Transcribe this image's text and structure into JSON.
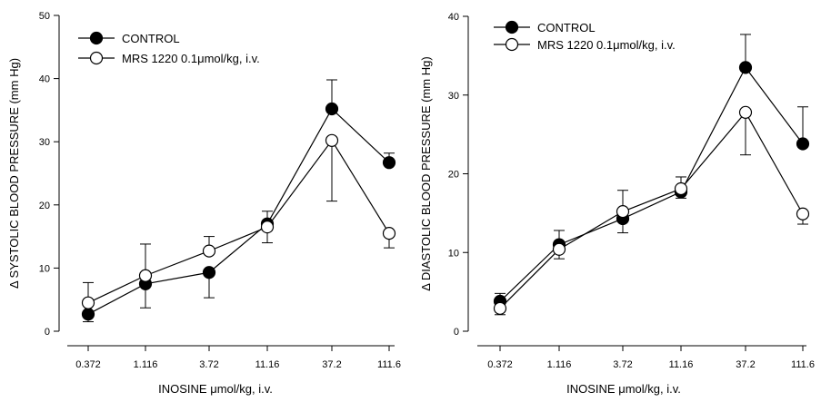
{
  "chart_data": [
    {
      "type": "line",
      "ylabel": "Δ SYSTOLIC BLOOD PRESSURE (mm Hg)",
      "xlabel": "INOSINE μmol/kg, i.v.",
      "categories": [
        "0.372",
        "1.116",
        "3.72",
        "11.16",
        "37.2",
        "111.6"
      ],
      "ylim": [
        0,
        50
      ],
      "yticks": [
        "0",
        "10",
        "20",
        "30",
        "40",
        "50"
      ],
      "grid": false,
      "legend_position": "top-left",
      "series": [
        {
          "name": "CONTROL",
          "marker": "filled-circle",
          "color": "#000000",
          "values": [
            2.7,
            7.5,
            9.3,
            17.0,
            35.2,
            26.7
          ],
          "errors": [
            1.2,
            3.8,
            4.0,
            2.0,
            4.6,
            1.5
          ]
        },
        {
          "name": "MRS 1220 0.1μmol/kg, i.v.",
          "marker": "open-circle",
          "color": "#000000",
          "values": [
            4.5,
            8.8,
            12.7,
            16.5,
            30.2,
            15.5
          ],
          "errors": [
            3.2,
            5.0,
            2.3,
            2.5,
            9.6,
            2.3
          ]
        }
      ]
    },
    {
      "type": "line",
      "ylabel": "Δ DIASTOLIC BLOOD PRESSURE (mm Hg)",
      "xlabel": "INOSINE μmol/kg, i.v.",
      "categories": [
        "0.372",
        "1.116",
        "3.72",
        "11.16",
        "37.2",
        "111.6"
      ],
      "ylim": [
        0,
        40
      ],
      "yticks": [
        "0",
        "10",
        "20",
        "30",
        "40"
      ],
      "grid": false,
      "legend_position": "top-left",
      "series": [
        {
          "name": "CONTROL",
          "marker": "filled-circle",
          "color": "#000000",
          "values": [
            3.8,
            11.0,
            14.3,
            17.7,
            33.5,
            23.8
          ],
          "errors": [
            1.0,
            1.8,
            1.8,
            0.8,
            4.2,
            4.7
          ]
        },
        {
          "name": "MRS 1220 0.1μmol/kg, i.v.",
          "marker": "open-circle",
          "color": "#000000",
          "values": [
            2.9,
            10.4,
            15.2,
            18.1,
            27.8,
            14.9
          ],
          "errors": [
            0.8,
            1.2,
            2.7,
            1.5,
            5.4,
            1.3
          ]
        }
      ]
    }
  ]
}
